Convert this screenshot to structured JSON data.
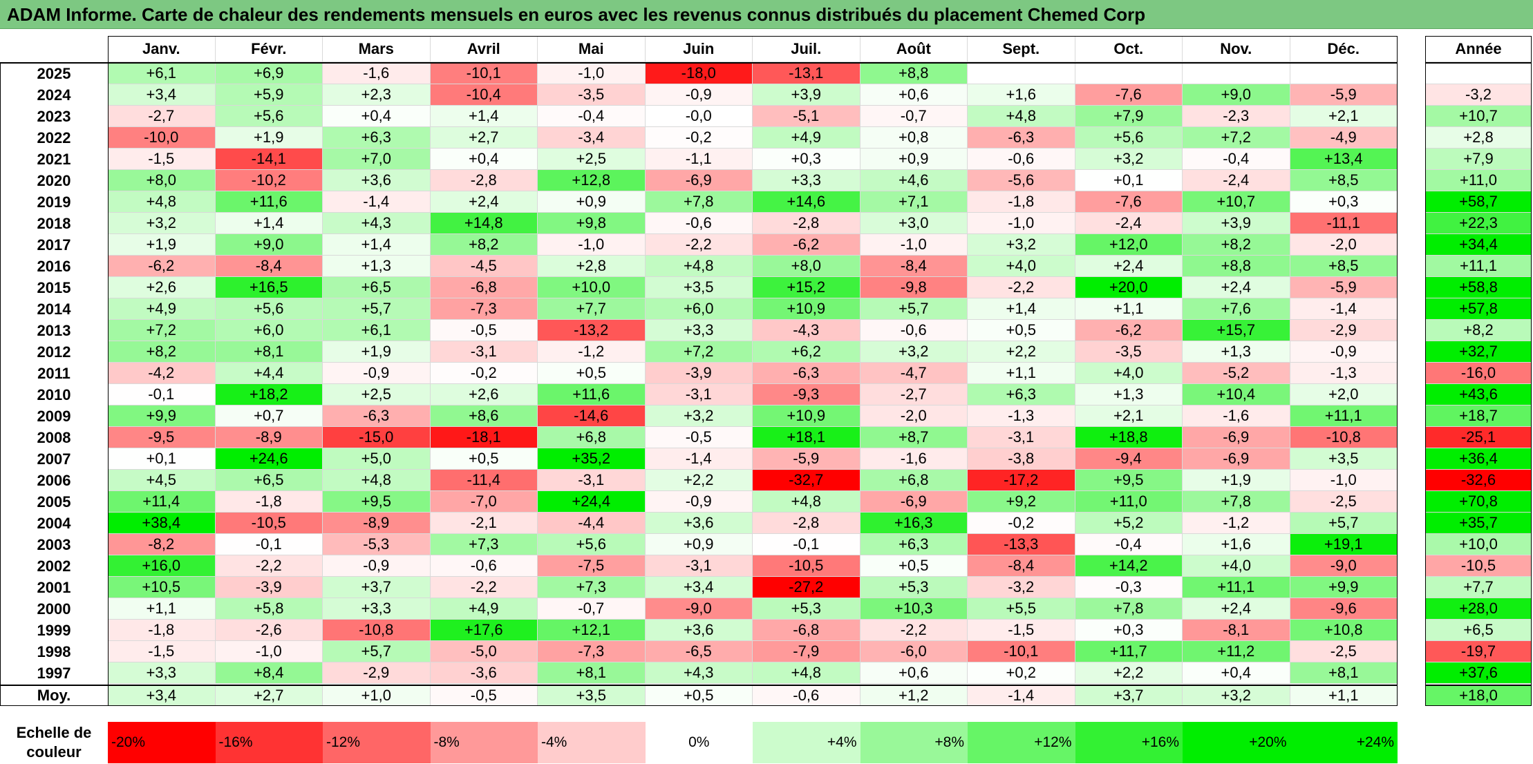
{
  "title": "ADAM Informe. Carte de chaleur des rendements mensuels en euros avec les revenus connus distribués du placement Chemed Corp",
  "chart_data": {
    "type": "heatmap",
    "columns": [
      "Janv.",
      "Févr.",
      "Mars",
      "Avril",
      "Mai",
      "Juin",
      "Juil.",
      "Août",
      "Sept.",
      "Oct.",
      "Nov.",
      "Déc."
    ],
    "annual_header": "Année",
    "rows": [
      {
        "year": "2025",
        "values": [
          "+6,1",
          "+6,9",
          "-1,6",
          "-10,1",
          "-1,0",
          "-18,0",
          "-13,1",
          "+8,8",
          "",
          "",
          "",
          ""
        ],
        "annual": ""
      },
      {
        "year": "2024",
        "values": [
          "+3,4",
          "+5,9",
          "+2,3",
          "-10,4",
          "-3,5",
          "-0,9",
          "+3,9",
          "+0,6",
          "+1,6",
          "-7,6",
          "+9,0",
          "-5,9"
        ],
        "annual": "-3,2"
      },
      {
        "year": "2023",
        "values": [
          "-2,7",
          "+5,6",
          "+0,4",
          "+1,4",
          "-0,4",
          "-0,0",
          "-5,1",
          "-0,7",
          "+4,8",
          "+7,9",
          "-2,3",
          "+2,1"
        ],
        "annual": "+10,7"
      },
      {
        "year": "2022",
        "values": [
          "-10,0",
          "+1,9",
          "+6,3",
          "+2,7",
          "-3,4",
          "-0,2",
          "+4,9",
          "+0,8",
          "-6,3",
          "+5,6",
          "+7,2",
          "-4,9"
        ],
        "annual": "+2,8"
      },
      {
        "year": "2021",
        "values": [
          "-1,5",
          "-14,1",
          "+7,0",
          "+0,4",
          "+2,5",
          "-1,1",
          "+0,3",
          "+0,9",
          "-0,6",
          "+3,2",
          "-0,4",
          "+13,4"
        ],
        "annual": "+7,9"
      },
      {
        "year": "2020",
        "values": [
          "+8,0",
          "-10,2",
          "+3,6",
          "-2,8",
          "+12,8",
          "-6,9",
          "+3,3",
          "+4,6",
          "-5,6",
          "+0,1",
          "-2,4",
          "+8,5"
        ],
        "annual": "+11,0"
      },
      {
        "year": "2019",
        "values": [
          "+4,8",
          "+11,6",
          "-1,4",
          "+2,4",
          "+0,9",
          "+7,8",
          "+14,6",
          "+7,1",
          "-1,8",
          "-7,6",
          "+10,7",
          "+0,3"
        ],
        "annual": "+58,7"
      },
      {
        "year": "2018",
        "values": [
          "+3,2",
          "+1,4",
          "+4,3",
          "+14,8",
          "+9,8",
          "-0,6",
          "-2,8",
          "+3,0",
          "-1,0",
          "-2,4",
          "+3,9",
          "-11,1"
        ],
        "annual": "+22,3"
      },
      {
        "year": "2017",
        "values": [
          "+1,9",
          "+9,0",
          "+1,4",
          "+8,2",
          "-1,0",
          "-2,2",
          "-6,2",
          "-1,0",
          "+3,2",
          "+12,0",
          "+8,2",
          "-2,0"
        ],
        "annual": "+34,4"
      },
      {
        "year": "2016",
        "values": [
          "-6,2",
          "-8,4",
          "+1,3",
          "-4,5",
          "+2,8",
          "+4,8",
          "+8,0",
          "-8,4",
          "+4,0",
          "+2,4",
          "+8,8",
          "+8,5"
        ],
        "annual": "+11,1"
      },
      {
        "year": "2015",
        "values": [
          "+2,6",
          "+16,5",
          "+6,5",
          "-6,8",
          "+10,0",
          "+3,5",
          "+15,2",
          "-9,8",
          "-2,2",
          "+20,0",
          "+2,4",
          "-5,9"
        ],
        "annual": "+58,8"
      },
      {
        "year": "2014",
        "values": [
          "+4,9",
          "+5,6",
          "+5,7",
          "-7,3",
          "+7,7",
          "+6,0",
          "+10,9",
          "+5,7",
          "+1,4",
          "+1,1",
          "+7,6",
          "-1,4"
        ],
        "annual": "+57,8"
      },
      {
        "year": "2013",
        "values": [
          "+7,2",
          "+6,0",
          "+6,1",
          "-0,5",
          "-13,2",
          "+3,3",
          "-4,3",
          "-0,6",
          "+0,5",
          "-6,2",
          "+15,7",
          "-2,9"
        ],
        "annual": "+8,2"
      },
      {
        "year": "2012",
        "values": [
          "+8,2",
          "+8,1",
          "+1,9",
          "-3,1",
          "-1,2",
          "+7,2",
          "+6,2",
          "+3,2",
          "+2,2",
          "-3,5",
          "+1,3",
          "-0,9"
        ],
        "annual": "+32,7"
      },
      {
        "year": "2011",
        "values": [
          "-4,2",
          "+4,4",
          "-0,9",
          "-0,2",
          "+0,5",
          "-3,9",
          "-6,3",
          "-4,7",
          "+1,1",
          "+4,0",
          "-5,2",
          "-1,3"
        ],
        "annual": "-16,0"
      },
      {
        "year": "2010",
        "values": [
          "-0,1",
          "+18,2",
          "+2,5",
          "+2,6",
          "+11,6",
          "-3,1",
          "-9,3",
          "-2,7",
          "+6,3",
          "+1,3",
          "+10,4",
          "+2,0"
        ],
        "annual": "+43,6"
      },
      {
        "year": "2009",
        "values": [
          "+9,9",
          "+0,7",
          "-6,3",
          "+8,6",
          "-14,6",
          "+3,2",
          "+10,9",
          "-2,0",
          "-1,3",
          "+2,1",
          "-1,6",
          "+11,1"
        ],
        "annual": "+18,7"
      },
      {
        "year": "2008",
        "values": [
          "-9,5",
          "-8,9",
          "-15,0",
          "-18,1",
          "+6,8",
          "-0,5",
          "+18,1",
          "+8,7",
          "-3,1",
          "+18,8",
          "-6,9",
          "-10,8"
        ],
        "annual": "-25,1"
      },
      {
        "year": "2007",
        "values": [
          "+0,1",
          "+24,6",
          "+5,0",
          "+0,5",
          "+35,2",
          "-1,4",
          "-5,9",
          "-1,6",
          "-3,8",
          "-9,4",
          "-6,9",
          "+3,5"
        ],
        "annual": "+36,4"
      },
      {
        "year": "2006",
        "values": [
          "+4,5",
          "+6,5",
          "+4,8",
          "-11,4",
          "-3,1",
          "+2,2",
          "-32,7",
          "+6,8",
          "-17,2",
          "+9,5",
          "+1,9",
          "-1,0"
        ],
        "annual": "-32,6"
      },
      {
        "year": "2005",
        "values": [
          "+11,4",
          "-1,8",
          "+9,5",
          "-7,0",
          "+24,4",
          "-0,9",
          "+4,8",
          "-6,9",
          "+9,2",
          "+11,0",
          "+7,8",
          "-2,5"
        ],
        "annual": "+70,8"
      },
      {
        "year": "2004",
        "values": [
          "+38,4",
          "-10,5",
          "-8,9",
          "-2,1",
          "-4,4",
          "+3,6",
          "-2,8",
          "+16,3",
          "-0,2",
          "+5,2",
          "-1,2",
          "+5,7"
        ],
        "annual": "+35,7"
      },
      {
        "year": "2003",
        "values": [
          "-8,2",
          "-0,1",
          "-5,3",
          "+7,3",
          "+5,6",
          "+0,9",
          "-0,1",
          "+6,3",
          "-13,3",
          "-0,4",
          "+1,6",
          "+19,1"
        ],
        "annual": "+10,0"
      },
      {
        "year": "2002",
        "values": [
          "+16,0",
          "-2,2",
          "-0,9",
          "-0,6",
          "-7,5",
          "-3,1",
          "-10,5",
          "+0,5",
          "-8,4",
          "+14,2",
          "+4,0",
          "-9,0"
        ],
        "annual": "-10,5"
      },
      {
        "year": "2001",
        "values": [
          "+10,5",
          "-3,9",
          "+3,7",
          "-2,2",
          "+7,3",
          "+3,4",
          "-27,2",
          "+5,3",
          "-3,2",
          "-0,3",
          "+11,1",
          "+9,9"
        ],
        "annual": "+7,7"
      },
      {
        "year": "2000",
        "values": [
          "+1,1",
          "+5,8",
          "+3,3",
          "+4,9",
          "-0,7",
          "-9,0",
          "+5,3",
          "+10,3",
          "+5,5",
          "+7,8",
          "+2,4",
          "-9,6"
        ],
        "annual": "+28,0"
      },
      {
        "year": "1999",
        "values": [
          "-1,8",
          "-2,6",
          "-10,8",
          "+17,6",
          "+12,1",
          "+3,6",
          "-6,8",
          "-2,2",
          "-1,5",
          "+0,3",
          "-8,1",
          "+10,8"
        ],
        "annual": "+6,5"
      },
      {
        "year": "1998",
        "values": [
          "-1,5",
          "-1,0",
          "+5,7",
          "-5,0",
          "-7,3",
          "-6,5",
          "-7,9",
          "-6,0",
          "-10,1",
          "+11,7",
          "+11,2",
          "-2,5"
        ],
        "annual": "-19,7"
      },
      {
        "year": "1997",
        "values": [
          "+3,3",
          "+8,4",
          "-2,9",
          "-3,6",
          "+8,1",
          "+4,3",
          "+4,8",
          "+0,6",
          "+0,2",
          "+2,2",
          "+0,4",
          "+8,1"
        ],
        "annual": "+37,6"
      }
    ],
    "average": {
      "label": "Moy.",
      "values": [
        "+3,4",
        "+2,7",
        "+1,0",
        "-0,5",
        "+3,5",
        "+0,5",
        "-0,6",
        "+1,2",
        "-1,4",
        "+3,7",
        "+3,2",
        "+1,1"
      ],
      "annual": "+18,0"
    },
    "color_scale": {
      "label": "Echelle de couleur",
      "stops": [
        "-20%",
        "-16%",
        "-12%",
        "-8%",
        "-4%",
        "0%",
        "+4%",
        "+8%",
        "+12%",
        "+16%",
        "+20%",
        "+24%"
      ],
      "negative_color": "#ff0000",
      "positive_color": "#00ee00",
      "neutral_color": "#ffffff"
    }
  }
}
